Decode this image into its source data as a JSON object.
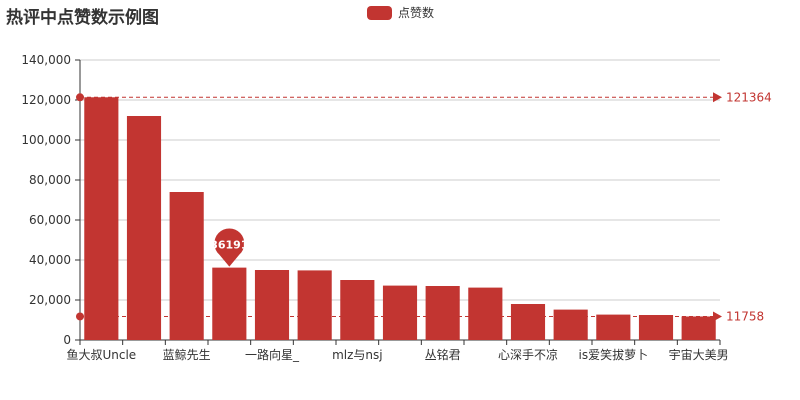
{
  "title": "热评中点赞数示例图",
  "legend": {
    "label": "点赞数"
  },
  "colors": {
    "bar": "#c23531",
    "axis": "#333333",
    "grid": "#cccccc",
    "label_text": "#333333"
  },
  "chart_data": {
    "type": "bar",
    "title": "热评中点赞数示例图",
    "series": [
      {
        "name": "点赞数",
        "values": [
          121364,
          112000,
          74000,
          36191,
          35000,
          34800,
          30000,
          27200,
          27000,
          26200,
          18000,
          15200,
          12700,
          12500,
          11758
        ]
      }
    ],
    "categories": [
      "鱼大叔Uncle",
      "",
      "蓝鲸先生",
      "",
      "一路向星_",
      "",
      "mlz与nsj",
      "",
      "丛铭君",
      "",
      "心深手不凉",
      "",
      "is爱笑拔萝卜",
      "",
      "宇宙大美男"
    ],
    "ylim": [
      0,
      140000
    ],
    "yticks": [
      0,
      20000,
      40000,
      60000,
      80000,
      100000,
      120000,
      140000
    ],
    "ytick_labels": [
      "0",
      "20,000",
      "40,000",
      "60,000",
      "80,000",
      "100,000",
      "120,000",
      "140,000"
    ],
    "grid": true,
    "legend_position": "top-center",
    "mark_point": {
      "index": 3,
      "label": "36191"
    },
    "mark_lines": [
      {
        "value": 121364,
        "label": "121364"
      },
      {
        "value": 11758,
        "label": "11758"
      }
    ]
  }
}
